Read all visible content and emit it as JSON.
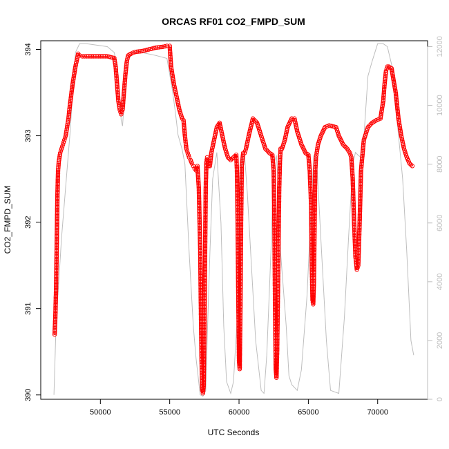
{
  "chart_data": {
    "type": "scatter",
    "title": "ORCAS RF01 CO2_FMPD_SUM",
    "xlabel": "UTC Seconds",
    "ylabel": "CO2_FMPD_SUM",
    "xlim": [
      45700,
      73600
    ],
    "ylim": [
      389.95,
      394.1
    ],
    "y2lim": [
      0,
      12200
    ],
    "x_ticks": [
      50000,
      55000,
      60000,
      65000,
      70000
    ],
    "y_ticks": [
      390,
      391,
      392,
      393,
      394
    ],
    "y2_ticks": [
      0,
      2000,
      4000,
      6000,
      8000,
      10000,
      12000
    ],
    "grid": false,
    "series": [
      {
        "color": "#ff0000",
        "marker": "open-circle",
        "axis": "left",
        "x": [
          46700,
          46750,
          46800,
          46850,
          46900,
          46950,
          47000,
          47100,
          47200,
          47300,
          47400,
          47500,
          47600,
          47700,
          47800,
          48000,
          48200,
          48400,
          48500,
          48700,
          49000,
          49500,
          50000,
          50500,
          51000,
          51100,
          51200,
          51300,
          51400,
          51500,
          51600,
          51700,
          51800,
          51900,
          52000,
          52200,
          52500,
          53000,
          53500,
          54000,
          54500,
          54800,
          55000,
          55100,
          55300,
          55500,
          55700,
          55900,
          56000,
          56100,
          56200,
          56300,
          56400,
          56500,
          56600,
          56700,
          56800,
          56900,
          57000,
          57100,
          57200,
          57250,
          57300,
          57350,
          57400,
          57450,
          57500,
          57550,
          57600,
          57650,
          57700,
          57750,
          57800,
          57900,
          58000,
          58200,
          58400,
          58600,
          58800,
          59000,
          59200,
          59400,
          59600,
          59800,
          59850,
          59900,
          59950,
          60000,
          60050,
          60100,
          60150,
          60200,
          60300,
          60400,
          60500,
          60700,
          61000,
          61300,
          61600,
          61900,
          62200,
          62400,
          62500,
          62550,
          62600,
          62650,
          62700,
          62750,
          62800,
          62850,
          62900,
          62950,
          63000,
          63100,
          63300,
          63500,
          63800,
          64000,
          64200,
          64500,
          64800,
          65000,
          65100,
          65200,
          65250,
          65300,
          65350,
          65400,
          65450,
          65500,
          65550,
          65600,
          65700,
          65900,
          66200,
          66500,
          67000,
          67200,
          67500,
          67800,
          68000,
          68100,
          68200,
          68300,
          68400,
          68500,
          68600,
          68700,
          68800,
          69000,
          69300,
          69600,
          69900,
          70200,
          70400,
          70500,
          70600,
          70700,
          70800,
          71000,
          71300,
          71500,
          71700,
          71900,
          72100,
          72300,
          72500
        ],
        "y": [
          390.7,
          390.9,
          391.2,
          391.7,
          392.3,
          392.6,
          392.7,
          392.8,
          392.85,
          392.9,
          392.95,
          393.0,
          393.1,
          393.2,
          393.35,
          393.6,
          393.8,
          393.95,
          393.93,
          393.92,
          393.92,
          393.92,
          393.92,
          393.92,
          393.9,
          393.8,
          393.6,
          393.4,
          393.3,
          393.25,
          393.3,
          393.5,
          393.7,
          393.85,
          393.93,
          393.95,
          393.97,
          393.98,
          394.0,
          394.02,
          394.03,
          394.04,
          394.04,
          393.8,
          393.6,
          393.45,
          393.3,
          393.2,
          393.18,
          393.0,
          392.85,
          392.8,
          392.75,
          392.72,
          392.68,
          392.65,
          392.62,
          392.6,
          392.65,
          392.4,
          391.7,
          391.0,
          390.4,
          390.05,
          390.02,
          390.1,
          390.7,
          391.6,
          392.4,
          392.7,
          392.75,
          392.7,
          392.65,
          392.65,
          392.8,
          392.95,
          393.1,
          393.15,
          393.0,
          392.85,
          392.75,
          392.72,
          392.75,
          392.78,
          392.6,
          392.0,
          391.1,
          390.4,
          390.3,
          391.0,
          392.0,
          392.65,
          392.8,
          392.8,
          392.85,
          393.0,
          393.2,
          393.15,
          393.0,
          392.85,
          392.8,
          392.78,
          392.6,
          392.0,
          391.0,
          390.3,
          390.2,
          390.5,
          391.1,
          391.8,
          392.4,
          392.7,
          392.85,
          392.85,
          392.95,
          393.1,
          393.2,
          393.2,
          393.05,
          392.9,
          392.8,
          392.78,
          392.6,
          392.2,
          391.5,
          391.1,
          391.05,
          391.3,
          392.0,
          392.6,
          392.75,
          392.8,
          392.9,
          393.0,
          393.1,
          393.12,
          393.1,
          393.0,
          392.9,
          392.85,
          392.8,
          392.75,
          392.5,
          392.0,
          391.6,
          391.45,
          391.5,
          392.0,
          392.6,
          392.95,
          393.1,
          393.15,
          393.18,
          393.2,
          393.4,
          393.6,
          393.75,
          393.8,
          393.8,
          393.78,
          393.5,
          393.2,
          393.0,
          392.85,
          392.75,
          392.68,
          392.65
        ]
      },
      {
        "color": "#bebebe",
        "marker": "line",
        "axis": "right",
        "x": [
          46650,
          46800,
          47200,
          47800,
          48200,
          48500,
          49000,
          50500,
          51000,
          51300,
          51500,
          51600,
          51700,
          52000,
          52300,
          53000,
          54000,
          54800,
          55200,
          55400,
          55600,
          55900,
          56100,
          56400,
          56700,
          56900,
          57200,
          57400,
          57600,
          57700,
          57900,
          58100,
          58400,
          58700,
          58900,
          59100,
          59400,
          59600,
          59900,
          60000,
          60200,
          60400,
          60600,
          60900,
          61200,
          61600,
          61800,
          62000,
          62300,
          62500,
          62700,
          62800,
          63000,
          63400,
          63600,
          63800,
          64200,
          64500,
          64900,
          65200,
          65400,
          65600,
          65900,
          66300,
          66600,
          67200,
          67600,
          67900,
          68200,
          68400,
          68600,
          68900,
          69300,
          69600,
          70000,
          70400,
          70700,
          71200,
          71400,
          71800,
          72100,
          72400,
          72600
        ],
        "y": [
          150,
          2500,
          5500,
          9000,
          11800,
          12100,
          12100,
          12000,
          11800,
          11000,
          9500,
          9300,
          10000,
          11500,
          11800,
          11800,
          11700,
          11600,
          10500,
          9800,
          9000,
          8500,
          8000,
          5000,
          2500,
          1400,
          150,
          100,
          300,
          2000,
          5000,
          7500,
          8400,
          6000,
          2500,
          600,
          200,
          600,
          3000,
          6000,
          8200,
          8300,
          7000,
          4500,
          2000,
          300,
          200,
          1500,
          5000,
          8000,
          8300,
          7500,
          5000,
          2500,
          800,
          500,
          300,
          1000,
          3500,
          6500,
          8300,
          8200,
          5500,
          2000,
          300,
          200,
          2800,
          5500,
          8000,
          8400,
          8300,
          8200,
          11000,
          11500,
          12100,
          12100,
          12000,
          11000,
          9500,
          7500,
          5000,
          2000,
          1500
        ]
      }
    ]
  }
}
